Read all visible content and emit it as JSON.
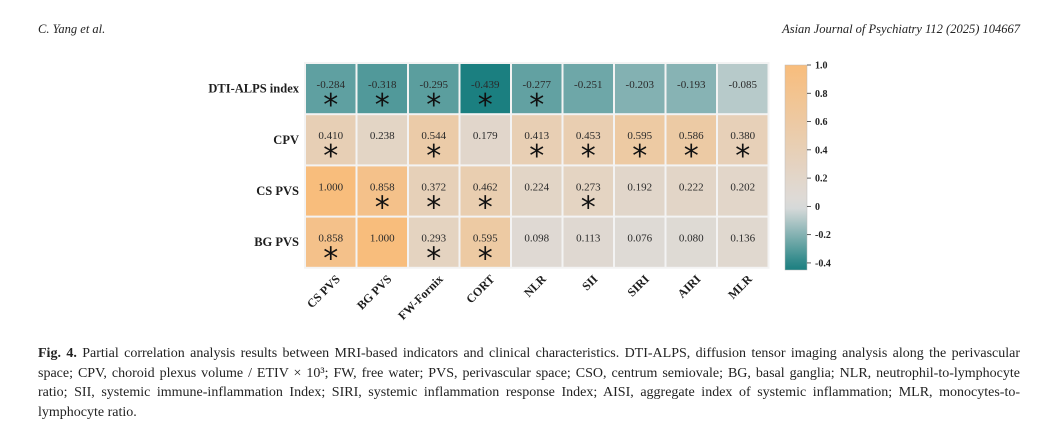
{
  "header": {
    "authors": "C. Yang et al.",
    "journal": "Asian Journal of Psychiatry 112 (2025) 104667"
  },
  "chart_data": {
    "type": "heatmap",
    "rows": [
      "DTI-ALPS index",
      "CPV",
      "CS PVS",
      "BG PVS"
    ],
    "columns": [
      "CS PVS",
      "BG PVS",
      "FW-Fornix",
      "CORT",
      "NLR",
      "SII",
      "SIRI",
      "AIRI",
      "MLR"
    ],
    "values": [
      [
        -0.284,
        -0.318,
        -0.295,
        -0.439,
        -0.277,
        -0.251,
        -0.203,
        -0.193,
        -0.085
      ],
      [
        0.41,
        0.238,
        0.544,
        0.179,
        0.413,
        0.453,
        0.595,
        0.586,
        0.38
      ],
      [
        1.0,
        0.858,
        0.372,
        0.462,
        0.224,
        0.273,
        0.192,
        0.222,
        0.202
      ],
      [
        0.858,
        1.0,
        0.293,
        0.595,
        0.098,
        0.113,
        0.076,
        0.08,
        0.136
      ]
    ],
    "labels": [
      [
        "-0.284",
        "-0.318",
        "-0.295",
        "-0.439",
        "-0.277",
        "-0.251",
        "-0.203",
        "-0.193",
        "-0.085"
      ],
      [
        "0.410",
        "0.238",
        "0.544",
        "0.179",
        "0.413",
        "0.453",
        "0.595",
        "0.586",
        "0.380"
      ],
      [
        "1.000",
        "0.858",
        "0.372",
        "0.462",
        "0.224",
        "0.273",
        "0.192",
        "0.222",
        "0.202"
      ],
      [
        "0.858",
        "1.000",
        "0.293",
        "0.595",
        "0.098",
        "0.113",
        "0.076",
        "0.080",
        "0.136"
      ]
    ],
    "significant": [
      [
        true,
        true,
        true,
        true,
        true,
        false,
        false,
        false,
        false
      ],
      [
        true,
        false,
        true,
        false,
        true,
        true,
        true,
        true,
        true
      ],
      [
        false,
        true,
        true,
        true,
        false,
        true,
        false,
        false,
        false
      ],
      [
        true,
        false,
        true,
        true,
        false,
        false,
        false,
        false,
        false
      ]
    ],
    "marker": "*",
    "colorbar": {
      "ticks": [
        "1.0",
        "0.8",
        "0.6",
        "0.4",
        "0.2",
        "0",
        "-0.2",
        "-0.4"
      ],
      "tick_values": [
        1.0,
        0.8,
        0.6,
        0.4,
        0.2,
        0,
        -0.2,
        -0.4
      ],
      "range": [
        -0.45,
        1.0
      ]
    },
    "colors": {
      "negative": "#1b7f80",
      "zero": "#dcdcdc",
      "positive": "#f8bd7c"
    }
  },
  "caption": {
    "label": "Fig. 4.",
    "text": " Partial correlation analysis results between MRI-based indicators and clinical characteristics. DTI-ALPS, diffusion tensor imaging analysis along the perivascular space; CPV, choroid plexus volume / ETIV × 10³; FW, free water; PVS, perivascular space; CSO, centrum semiovale; BG, basal ganglia; NLR, neutrophil-to-lymphocyte ratio; SII, systemic immune-inflammation Index; SIRI, systemic inflammation response Index; AISI, aggregate index of systemic inflammation; MLR, monocytes-to-lymphocyte ratio."
  }
}
